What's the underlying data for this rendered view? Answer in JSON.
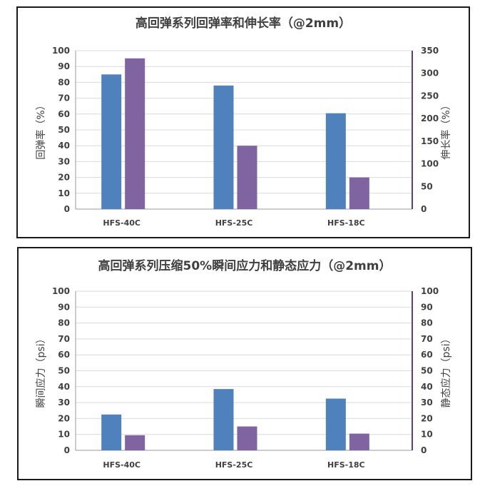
{
  "colors": {
    "left_series": "#4f81bd",
    "right_series": "#8064a2",
    "axis_left": "#9a9a9a",
    "axis_right": "#5e3c86",
    "grid": "#d9d9d9",
    "frame": "#1a1a1a",
    "text": "#404040"
  },
  "chart_data": [
    {
      "type": "bar",
      "title": "高回弹系列回弹率和伸长率（@2mm）",
      "categories": [
        "HFS-40C",
        "HFS-25C",
        "HFS-18C"
      ],
      "ylabel": "回弹率（%）",
      "ylabel_right": "伸长率（%）",
      "ylim": [
        0,
        100
      ],
      "ylim_right": [
        0,
        350
      ],
      "yticks": [
        0,
        10,
        20,
        30,
        40,
        50,
        60,
        70,
        80,
        90,
        100
      ],
      "yticks_right": [
        0,
        50,
        100,
        150,
        200,
        250,
        300,
        350
      ],
      "grid": true,
      "legend": "none",
      "series": [
        {
          "axis": "left",
          "values": [
            85,
            78,
            60.5
          ]
        },
        {
          "axis": "right",
          "values": [
            333,
            140,
            70
          ]
        }
      ]
    },
    {
      "type": "bar",
      "title": "高回弹系列压缩50%瞬间应力和静态应力（@2mm）",
      "categories": [
        "HFS-40C",
        "HFS-25C",
        "HFS-18C"
      ],
      "ylabel": "瞬间应力（psi）",
      "ylabel_right": "静态应力（psi）",
      "ylim": [
        0,
        100
      ],
      "ylim_right": [
        0,
        100
      ],
      "yticks": [
        0,
        10,
        20,
        30,
        40,
        50,
        60,
        70,
        80,
        90,
        100
      ],
      "yticks_right": [
        0,
        10,
        20,
        30,
        40,
        50,
        60,
        70,
        80,
        90,
        100
      ],
      "grid": true,
      "legend": "none",
      "series": [
        {
          "axis": "left",
          "values": [
            22.5,
            38.5,
            32.5
          ]
        },
        {
          "axis": "right",
          "values": [
            9.5,
            15,
            10.5
          ]
        }
      ]
    }
  ]
}
